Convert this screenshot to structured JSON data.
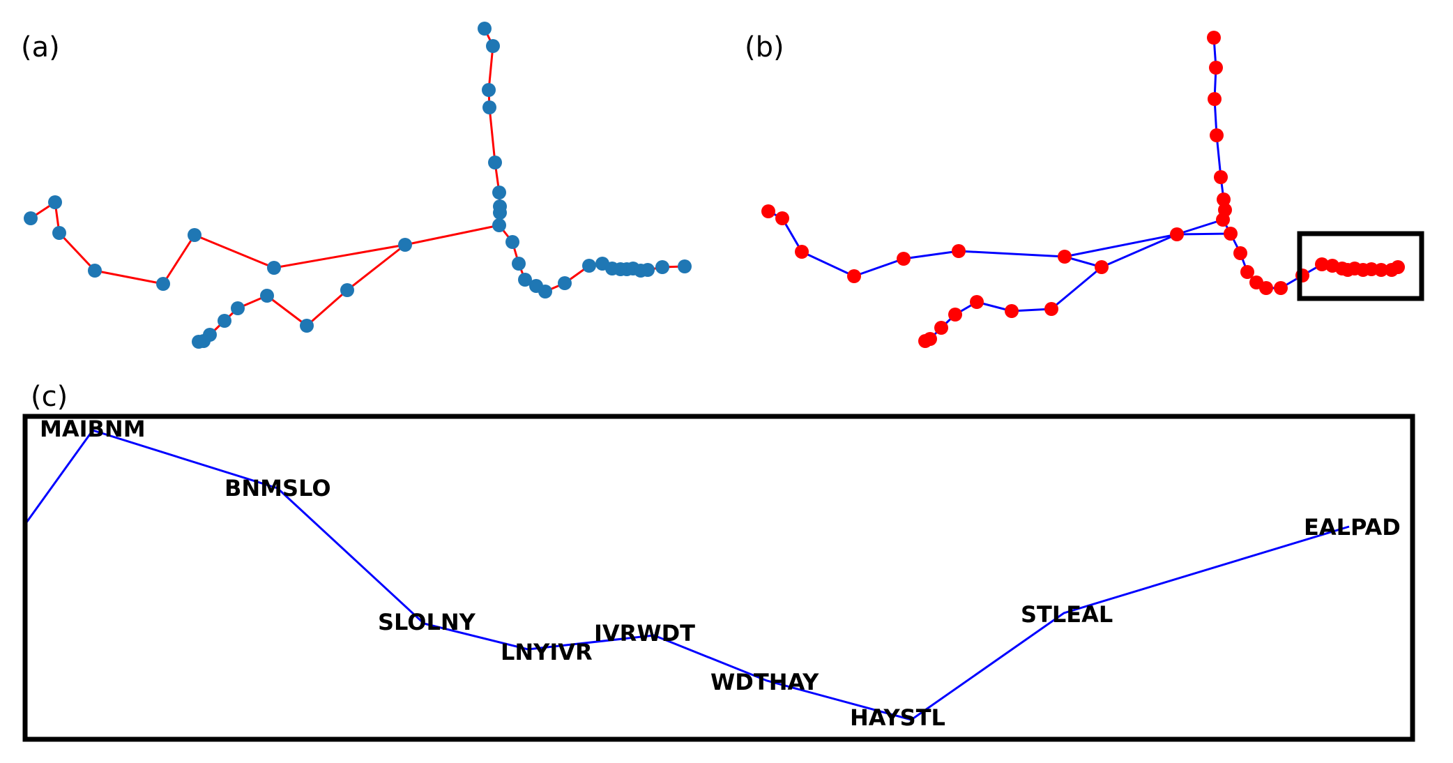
{
  "panels": {
    "a": {
      "label": "(a)",
      "node_color": "#1f77b4",
      "edge_color": "#ff0000"
    },
    "b": {
      "label": "(b)",
      "node_color": "#ff0000",
      "edge_color": "#0000ff"
    },
    "c": {
      "label": "(c)",
      "edge_color": "#0000ff",
      "stations": [
        "MAIBNM",
        "BNMSLO",
        "SLOLNY",
        "LNYIVR",
        "IVRWDT",
        "WDTHAY",
        "HAYSTL",
        "STLEAL",
        "EALPAD"
      ]
    }
  },
  "box_color": "#000000"
}
